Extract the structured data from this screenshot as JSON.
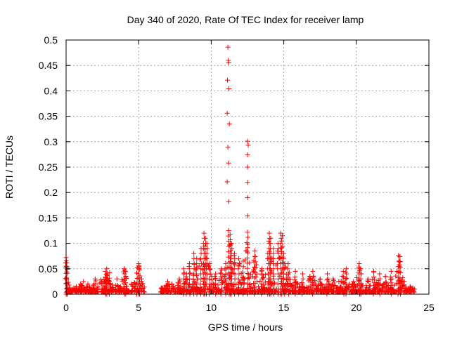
{
  "chart_data": {
    "type": "scatter",
    "title": "Day 340 of 2020, Rate Of TEC Index for receiver lamp",
    "xlabel": "GPS time / hours",
    "ylabel": "ROTI / TECUs",
    "xlim": [
      0,
      25
    ],
    "ylim": [
      0,
      0.5
    ],
    "xticks": [
      0,
      5,
      10,
      15,
      20,
      25
    ],
    "yticks": [
      0,
      0.05,
      0.1,
      0.15,
      0.2,
      0.25,
      0.3,
      0.35,
      0.4,
      0.45,
      0.5
    ],
    "xtick_labels": [
      "0",
      "5",
      "10",
      "15",
      "20",
      "25"
    ],
    "ytick_labels": [
      "0",
      "0.05",
      "0.1",
      "0.15",
      "0.2",
      "0.25",
      "0.3",
      "0.35",
      "0.4",
      "0.45",
      "0.5"
    ],
    "grid": true,
    "series": [
      {
        "color": "#ff0000",
        "marker": "plus",
        "data_gap_hours": [
          5.4,
          6.5
        ],
        "points": [
          [
            0.0,
            0.072
          ],
          [
            0.02,
            0.066
          ],
          [
            0.05,
            0.062
          ],
          [
            0.1,
            0.012
          ],
          [
            0.2,
            0.008
          ],
          [
            0.4,
            0.01
          ],
          [
            0.7,
            0.015
          ],
          [
            1.0,
            0.02
          ],
          [
            1.2,
            0.025
          ],
          [
            1.5,
            0.02
          ],
          [
            2.0,
            0.03
          ],
          [
            2.4,
            0.028
          ],
          [
            2.7,
            0.045
          ],
          [
            2.8,
            0.05
          ],
          [
            3.0,
            0.042
          ],
          [
            3.5,
            0.03
          ],
          [
            4.0,
            0.05
          ],
          [
            4.1,
            0.045
          ],
          [
            4.5,
            0.02
          ],
          [
            4.9,
            0.052
          ],
          [
            5.0,
            0.06
          ],
          [
            5.05,
            0.048
          ],
          [
            5.2,
            0.03
          ],
          [
            6.6,
            0.01
          ],
          [
            7.0,
            0.025
          ],
          [
            7.3,
            0.02
          ],
          [
            7.8,
            0.03
          ],
          [
            8.1,
            0.05
          ],
          [
            8.3,
            0.04
          ],
          [
            8.5,
            0.06
          ],
          [
            8.8,
            0.08
          ],
          [
            9.0,
            0.07
          ],
          [
            9.3,
            0.09
          ],
          [
            9.5,
            0.12
          ],
          [
            9.6,
            0.11
          ],
          [
            9.7,
            0.1
          ],
          [
            9.9,
            0.06
          ],
          [
            10.3,
            0.04
          ],
          [
            10.7,
            0.05
          ],
          [
            11.0,
            0.06
          ],
          [
            11.15,
            0.486
          ],
          [
            11.18,
            0.46
          ],
          [
            11.2,
            0.455
          ],
          [
            11.12,
            0.421
          ],
          [
            11.22,
            0.404
          ],
          [
            11.1,
            0.356
          ],
          [
            11.25,
            0.335
          ],
          [
            11.15,
            0.289
          ],
          [
            11.2,
            0.258
          ],
          [
            11.1,
            0.221
          ],
          [
            11.2,
            0.182
          ],
          [
            11.2,
            0.125
          ],
          [
            11.3,
            0.118
          ],
          [
            11.4,
            0.1
          ],
          [
            11.6,
            0.08
          ],
          [
            11.9,
            0.07
          ],
          [
            12.2,
            0.065
          ],
          [
            12.5,
            0.301
          ],
          [
            12.55,
            0.293
          ],
          [
            12.5,
            0.274
          ],
          [
            12.5,
            0.25
          ],
          [
            12.5,
            0.22
          ],
          [
            12.5,
            0.19
          ],
          [
            12.5,
            0.154
          ],
          [
            12.5,
            0.122
          ],
          [
            13.0,
            0.085
          ],
          [
            13.5,
            0.05
          ],
          [
            13.9,
            0.08
          ],
          [
            14.0,
            0.12
          ],
          [
            14.1,
            0.11
          ],
          [
            14.3,
            0.09
          ],
          [
            14.6,
            0.1
          ],
          [
            14.8,
            0.12
          ],
          [
            14.9,
            0.115
          ],
          [
            15.0,
            0.08
          ],
          [
            15.3,
            0.06
          ],
          [
            15.8,
            0.045
          ],
          [
            16.3,
            0.04
          ],
          [
            16.8,
            0.035
          ],
          [
            17.0,
            0.045
          ],
          [
            17.5,
            0.03
          ],
          [
            18.0,
            0.04
          ],
          [
            18.4,
            0.03
          ],
          [
            18.8,
            0.025
          ],
          [
            19.1,
            0.045
          ],
          [
            19.3,
            0.05
          ],
          [
            19.8,
            0.025
          ],
          [
            20.2,
            0.06
          ],
          [
            20.3,
            0.05
          ],
          [
            20.8,
            0.03
          ],
          [
            21.2,
            0.045
          ],
          [
            21.6,
            0.04
          ],
          [
            22.0,
            0.035
          ],
          [
            22.4,
            0.045
          ],
          [
            22.9,
            0.076
          ],
          [
            23.0,
            0.074
          ],
          [
            23.3,
            0.025
          ],
          [
            23.7,
            0.015
          ],
          [
            24.0,
            0.01
          ]
        ]
      }
    ]
  }
}
